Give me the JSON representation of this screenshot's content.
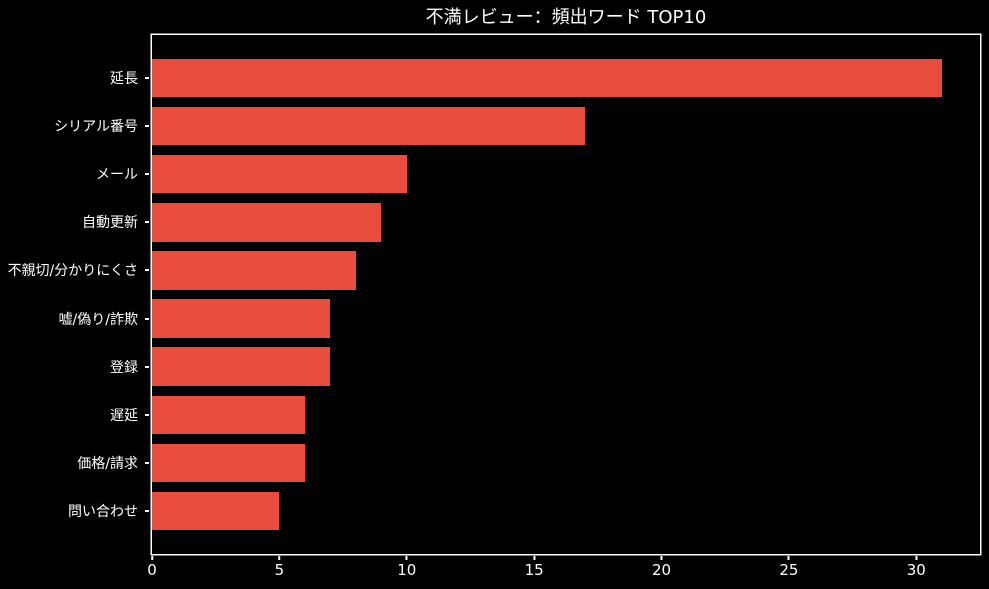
{
  "figure": {
    "background_color": "#000000",
    "text_color": "#ffffff",
    "spine_color": "#ffffff"
  },
  "chart_data": {
    "type": "bar",
    "orientation": "horizontal",
    "title": "不満レビュー：頻出ワード TOP10",
    "categories": [
      "延長",
      "シリアル番号",
      "メール",
      "自動更新",
      "不親切/分かりにくさ",
      "嘘/偽り/詐欺",
      "登録",
      "遅延",
      "価格/請求",
      "問い合わせ"
    ],
    "values": [
      31,
      17,
      10,
      9,
      8,
      7,
      7,
      6,
      6,
      5
    ],
    "xlabel": "",
    "ylabel": "",
    "xticks": [
      0,
      5,
      10,
      15,
      20,
      25,
      30
    ],
    "xlim": [
      0,
      32.5
    ],
    "bar_color": "#e74c3c",
    "bar_height_ratio": 0.8,
    "grid": false,
    "legend": null
  }
}
